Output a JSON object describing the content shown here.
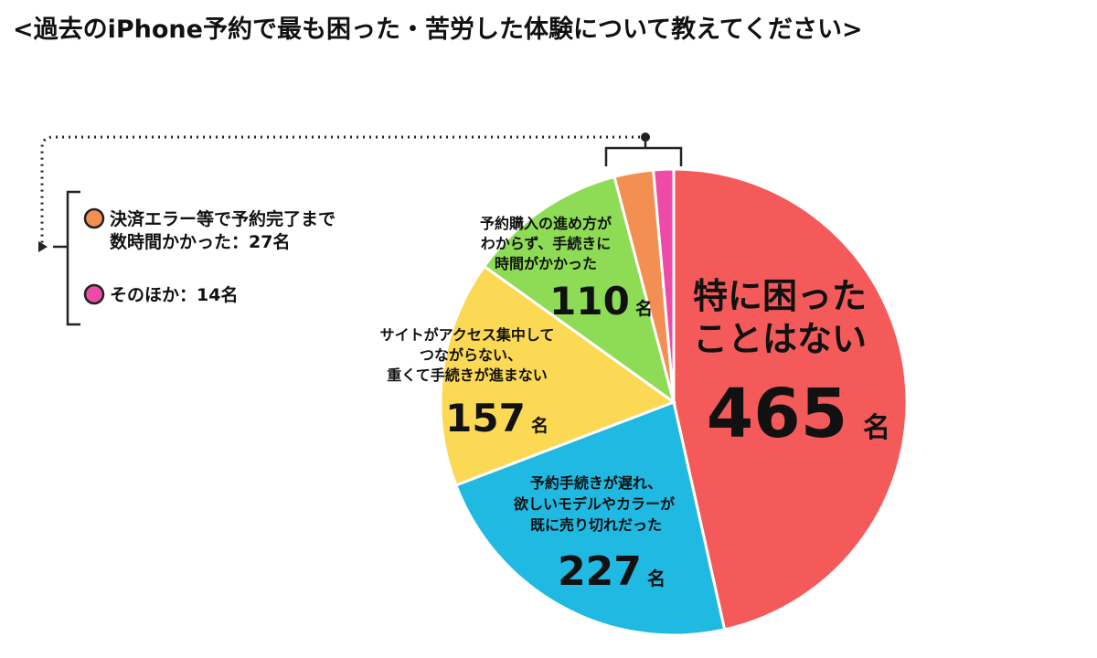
{
  "title": "<過去のiPhone予約で最も困った・苦労した体験について教えてください>",
  "colors": {
    "none": "#f45a5a",
    "soldout": "#1fb9e2",
    "access": "#fbd955",
    "procedure": "#8edc55",
    "payment": "#f38f52",
    "other": "#ee4ba8"
  },
  "chart_data": {
    "type": "pie",
    "title": "<過去のiPhone予約で最も困った・苦労した体験について教えてください>",
    "unit": "名",
    "slices": [
      {
        "label": "特に困ったことはない",
        "value": 465,
        "color": "#f45a5a"
      },
      {
        "label": "予約手続きが遅れ、欲しいモデルやカラーが既に売り切れだった",
        "value": 227,
        "color": "#1fb9e2"
      },
      {
        "label": "サイトがアクセス集中してつながらない、重くて手続きが進まない",
        "value": 157,
        "color": "#fbd955"
      },
      {
        "label": "予約購入の進め方がわからず、手続きに時間がかかった",
        "value": 110,
        "color": "#8edc55"
      },
      {
        "label": "決済エラー等で予約完了まで数時間かかった",
        "value": 27,
        "color": "#f38f52"
      },
      {
        "label": "そのほか",
        "value": 14,
        "color": "#ee4ba8"
      }
    ]
  },
  "labels": {
    "none_line1": "特に困った",
    "none_line2": "ことはない",
    "none_value": "465",
    "soldout_line1": "予約手続きが遅れ、",
    "soldout_line2": "欲しいモデルやカラーが",
    "soldout_line3": "既に売り切れだった",
    "soldout_value": "227",
    "access_line1": "サイトがアクセス集中して",
    "access_line2": "つながらない、",
    "access_line3": "重くて手続きが進まない",
    "access_value": "157",
    "procedure_line1": "予約購入の進め方が",
    "procedure_line2": "わからず、手続きに",
    "procedure_line3": "時間がかかった",
    "procedure_value": "110",
    "unit": "名"
  },
  "legend": {
    "payment_line1": "決済エラー等で予約完了まで",
    "payment_line2": "数時間かかった：27名",
    "other": "そのほか：14名"
  }
}
